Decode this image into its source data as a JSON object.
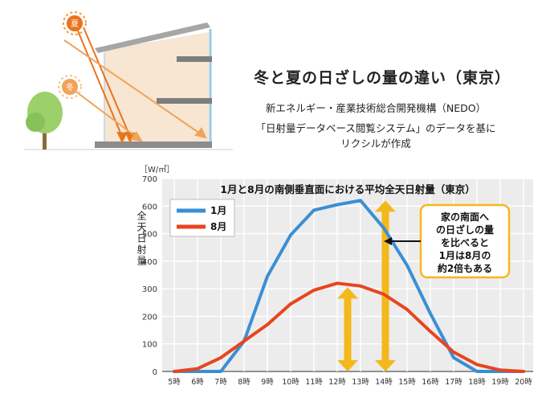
{
  "header": {
    "title": "冬と夏の日ざしの量の違い（東京）",
    "credit_line1": "新エネルギー・産業技術総合開発機構（NEDO）",
    "credit_line2": "「日射量データベース閲覧システム」のデータを基に",
    "credit_line3": "リクシルが作成",
    "sun_summer_label": "夏",
    "sun_winter_label": "冬"
  },
  "colors": {
    "january": "#3a8fd4",
    "august": "#e8451e",
    "arrow_yellow": "#f5b81b",
    "summer_ray": "#e8741e",
    "winter_ray": "#f2a35a"
  },
  "chart_data": {
    "type": "line",
    "title": "1月と8月の南側垂直面における平均全天日射量（東京）",
    "unit_label": "［W/㎡］",
    "ylabel": "全天日射量",
    "ylim": [
      0,
      700
    ],
    "yticks": [
      "0",
      "100",
      "200",
      "300",
      "400",
      "500",
      "600",
      "700"
    ],
    "categories": [
      "5時",
      "6時",
      "7時",
      "8時",
      "9時",
      "10時",
      "11時",
      "12時",
      "13時",
      "14時",
      "15時",
      "16時",
      "17時",
      "18時",
      "19時",
      "20時"
    ],
    "grid": true,
    "legend_position": "top-left",
    "series": [
      {
        "name": "1月",
        "values": [
          0,
          0,
          0,
          110,
          345,
          495,
          585,
          605,
          620,
          520,
          385,
          210,
          50,
          0,
          0,
          0
        ]
      },
      {
        "name": "8月",
        "values": [
          0,
          10,
          50,
          110,
          170,
          245,
          295,
          320,
          310,
          280,
          225,
          145,
          70,
          25,
          5,
          0
        ]
      }
    ],
    "annotation": "家の南面への日ざしの量を比べると1月は8月の約2倍もある"
  }
}
